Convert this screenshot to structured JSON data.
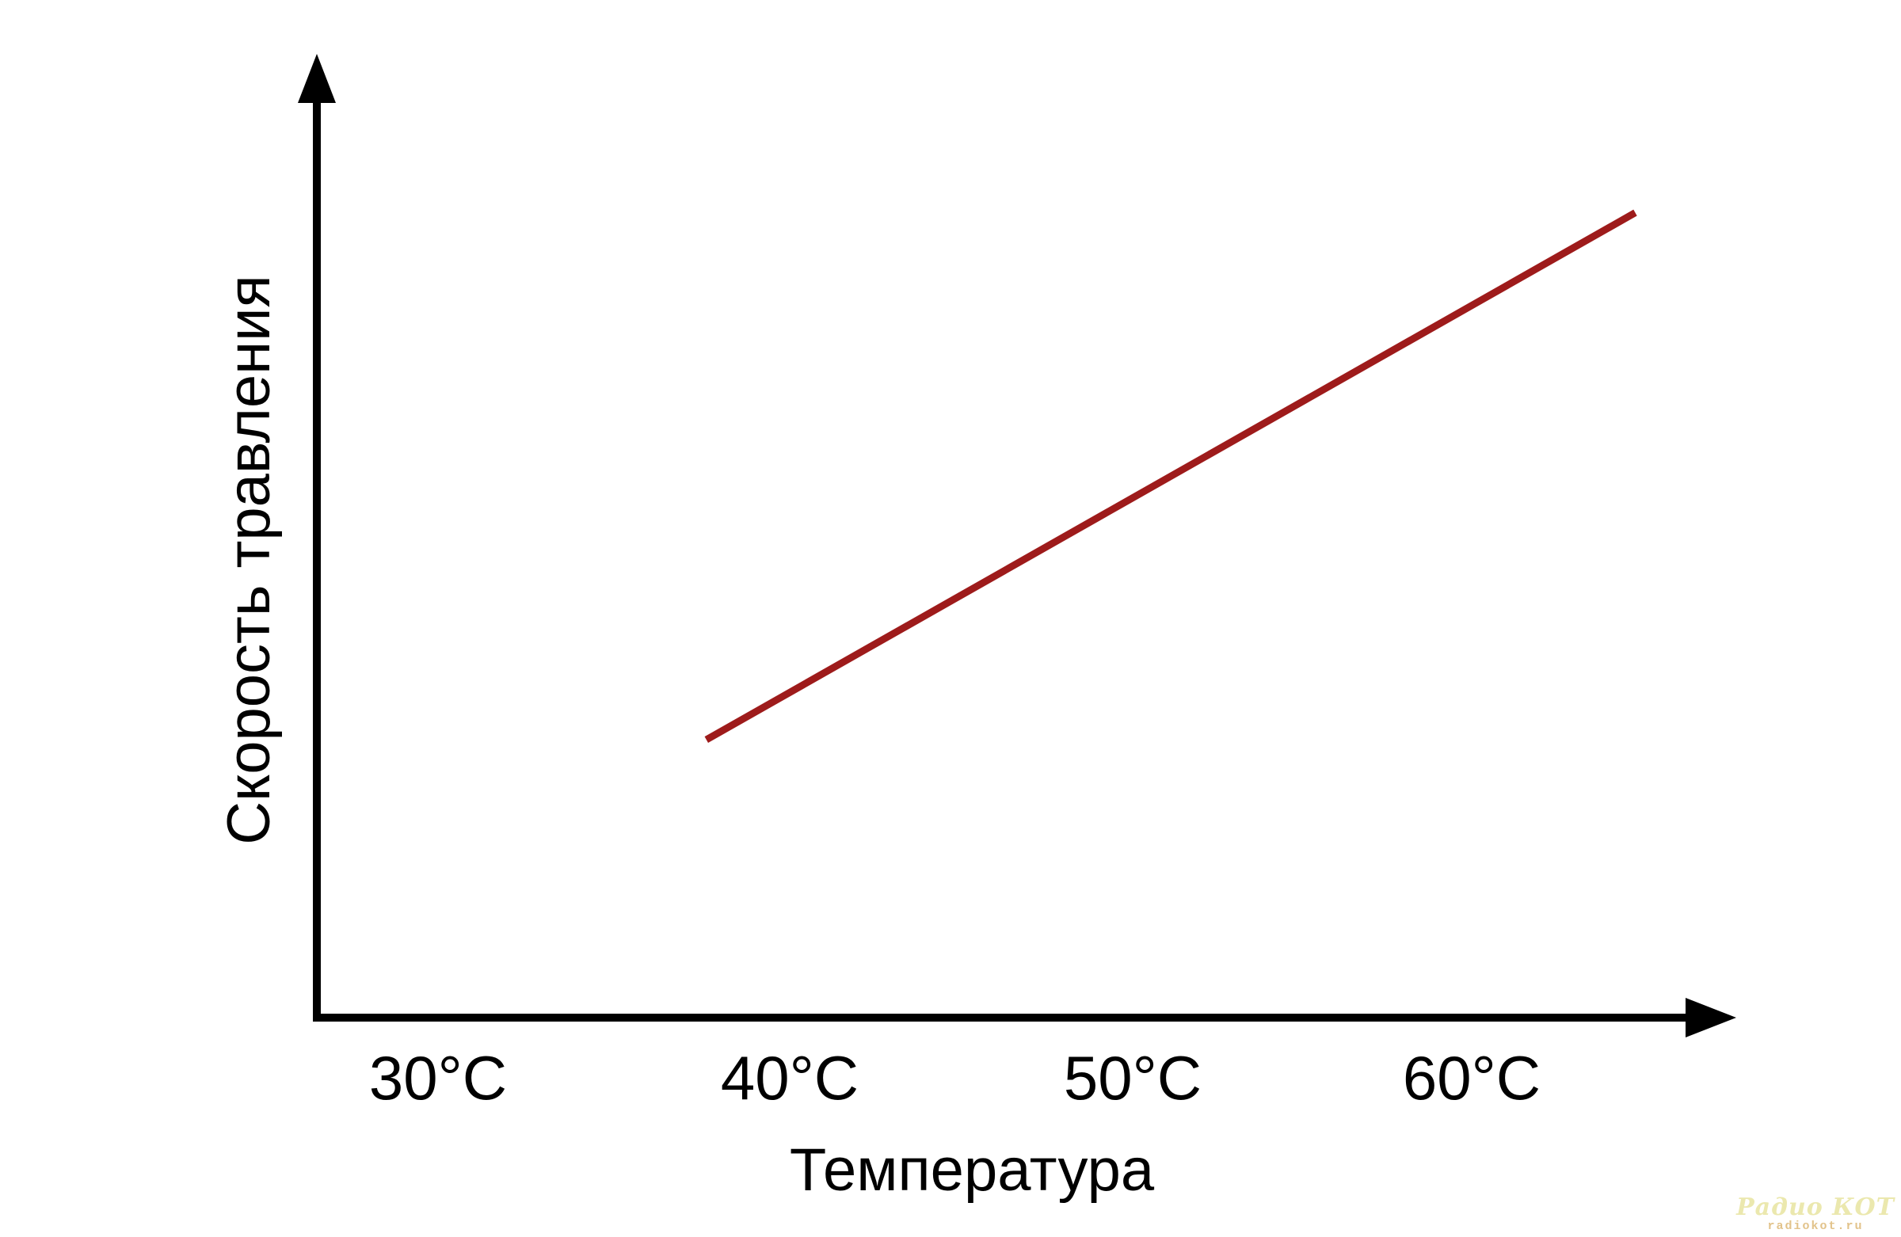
{
  "chart_data": {
    "type": "line",
    "title": "",
    "xlabel": "Температура",
    "ylabel": "Скорость травления",
    "x_tick_labels": [
      "30°C",
      "40°C",
      "50°C",
      "60°C"
    ],
    "x_tick_values": [
      30,
      40,
      50,
      60
    ],
    "x_axis_range_c": [
      27,
      66
    ],
    "y_axis": "unlabeled (qualitative, arrow up)",
    "grid": false,
    "legend": false,
    "axis_color": "#000000",
    "series": [
      {
        "name": "etch-rate-vs-temperature",
        "color": "#9e1b1b",
        "shape": "straight rising line",
        "points": [
          {
            "x": 37.8,
            "y": 0.29
          },
          {
            "x": 64.8,
            "y": 0.84
          }
        ],
        "y_units": "fraction of y-axis height above baseline (axis has no numeric scale)"
      }
    ]
  },
  "watermark": {
    "line1": "Радио КОТ",
    "line2": "radiokot.ru",
    "color1": "#ebe8ae",
    "color2": "#e2c38b"
  }
}
